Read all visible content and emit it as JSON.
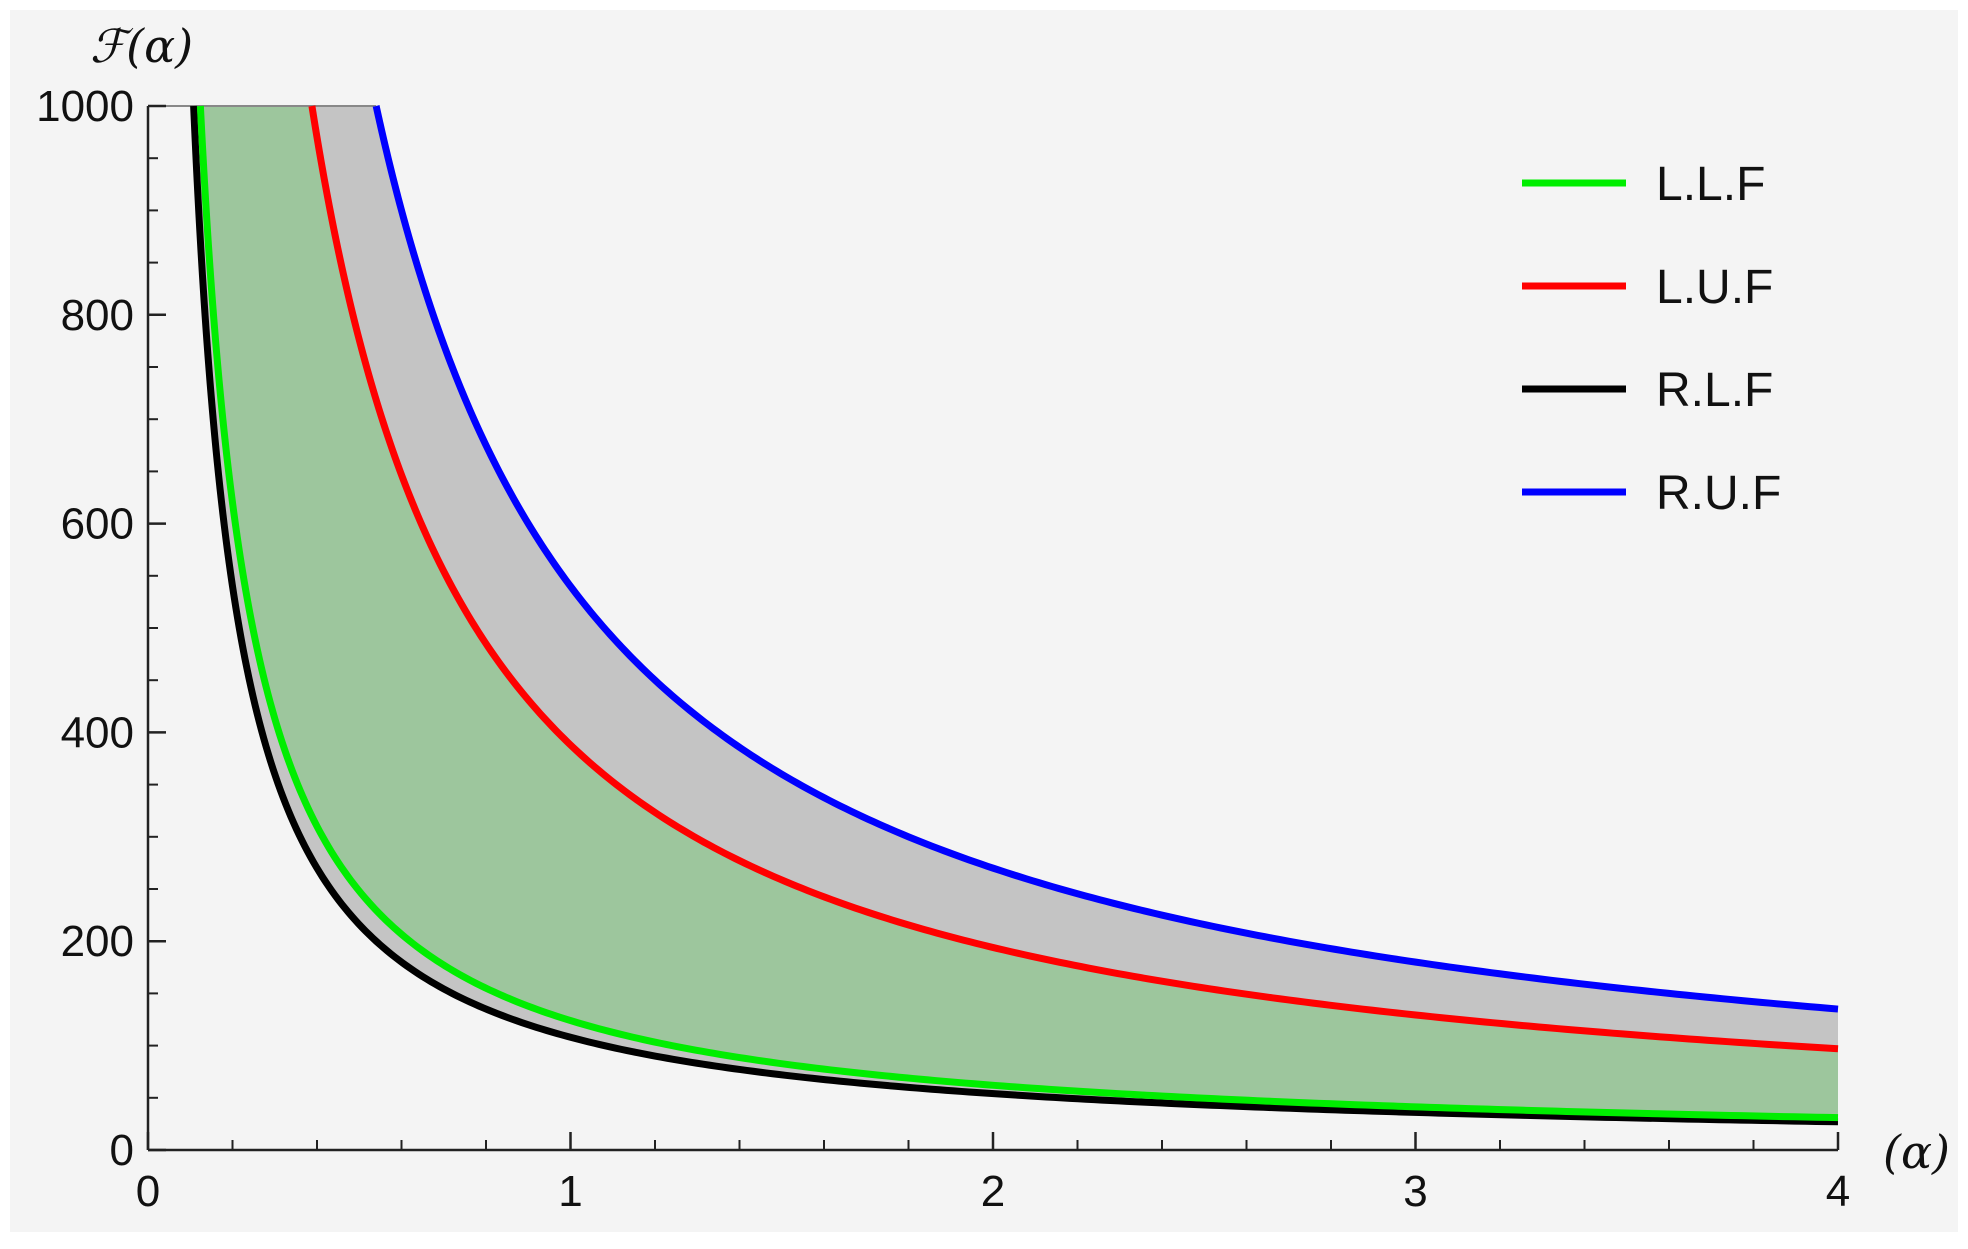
{
  "chart_data": {
    "type": "line",
    "title": "",
    "xlabel": "(α)",
    "ylabel": "ℱ(α)",
    "xlim": [
      0,
      4
    ],
    "ylim": [
      0,
      1000
    ],
    "x_ticks": [
      0,
      1,
      2,
      3,
      4
    ],
    "x_tick_labels": [
      "0",
      "1",
      "2",
      "3",
      "4"
    ],
    "y_ticks": [
      0,
      200,
      400,
      600,
      800,
      1000
    ],
    "y_tick_labels": [
      "0",
      "200",
      "400",
      "600",
      "800",
      "1000"
    ],
    "grid": false,
    "legend_position": "top-right",
    "background": "#f4f4f4",
    "x": [
      0.1,
      0.15,
      0.2,
      0.25,
      0.3,
      0.4,
      0.5,
      0.6,
      0.7,
      0.8,
      1.0,
      1.25,
      1.5,
      2.0,
      2.5,
      3.0,
      3.5,
      4.0
    ],
    "series": [
      {
        "name": "L.L.F",
        "color": "#00ee00",
        "x": [
          0.125,
          0.15,
          0.2,
          0.25,
          0.3,
          0.4,
          0.5,
          0.6,
          0.7,
          0.8,
          1.0,
          1.25,
          1.5,
          2.0,
          2.5,
          3.0,
          3.5,
          4.0
        ],
        "values": [
          1000,
          833,
          625,
          500,
          417,
          312,
          250,
          208,
          179,
          156,
          125,
          100,
          83,
          62,
          50,
          42,
          36,
          31
        ]
      },
      {
        "name": "L.U.F",
        "color": "#ff0000",
        "x": [
          0.39,
          0.4,
          0.5,
          0.6,
          0.7,
          0.8,
          1.0,
          1.25,
          1.5,
          2.0,
          2.5,
          3.0,
          3.5,
          4.0
        ],
        "values": [
          1000,
          975,
          780,
          650,
          557,
          487,
          390,
          312,
          260,
          195,
          156,
          130,
          111,
          97
        ]
      },
      {
        "name": "R.L.F",
        "color": "#000000",
        "x": [
          0.1,
          0.15,
          0.2,
          0.25,
          0.3,
          0.4,
          0.5,
          0.6,
          0.7,
          0.8,
          1.0,
          1.25,
          1.5,
          2.0,
          2.5,
          3.0,
          3.5,
          4.0
        ],
        "values": [
          1000,
          710,
          532,
          426,
          355,
          266,
          213,
          177,
          152,
          133,
          106,
          85,
          71,
          53,
          43,
          35,
          30,
          27
        ]
      },
      {
        "name": "R.U.F",
        "color": "#0000ff",
        "x": [
          0.54,
          0.6,
          0.7,
          0.8,
          1.0,
          1.25,
          1.5,
          2.0,
          2.5,
          3.0,
          3.5,
          4.0
        ],
        "values": [
          1000,
          900,
          771,
          675,
          540,
          432,
          360,
          270,
          216,
          180,
          154,
          135
        ]
      }
    ],
    "fill_regions": [
      {
        "between": [
          "L.L.F",
          "L.U.F"
        ],
        "color": "#9dc69d"
      },
      {
        "between": [
          "R.L.F",
          "L.L.F"
        ],
        "color": "#c4c4c4"
      },
      {
        "between": [
          "L.U.F",
          "R.U.F"
        ],
        "color": "#c4c4c4"
      }
    ]
  }
}
